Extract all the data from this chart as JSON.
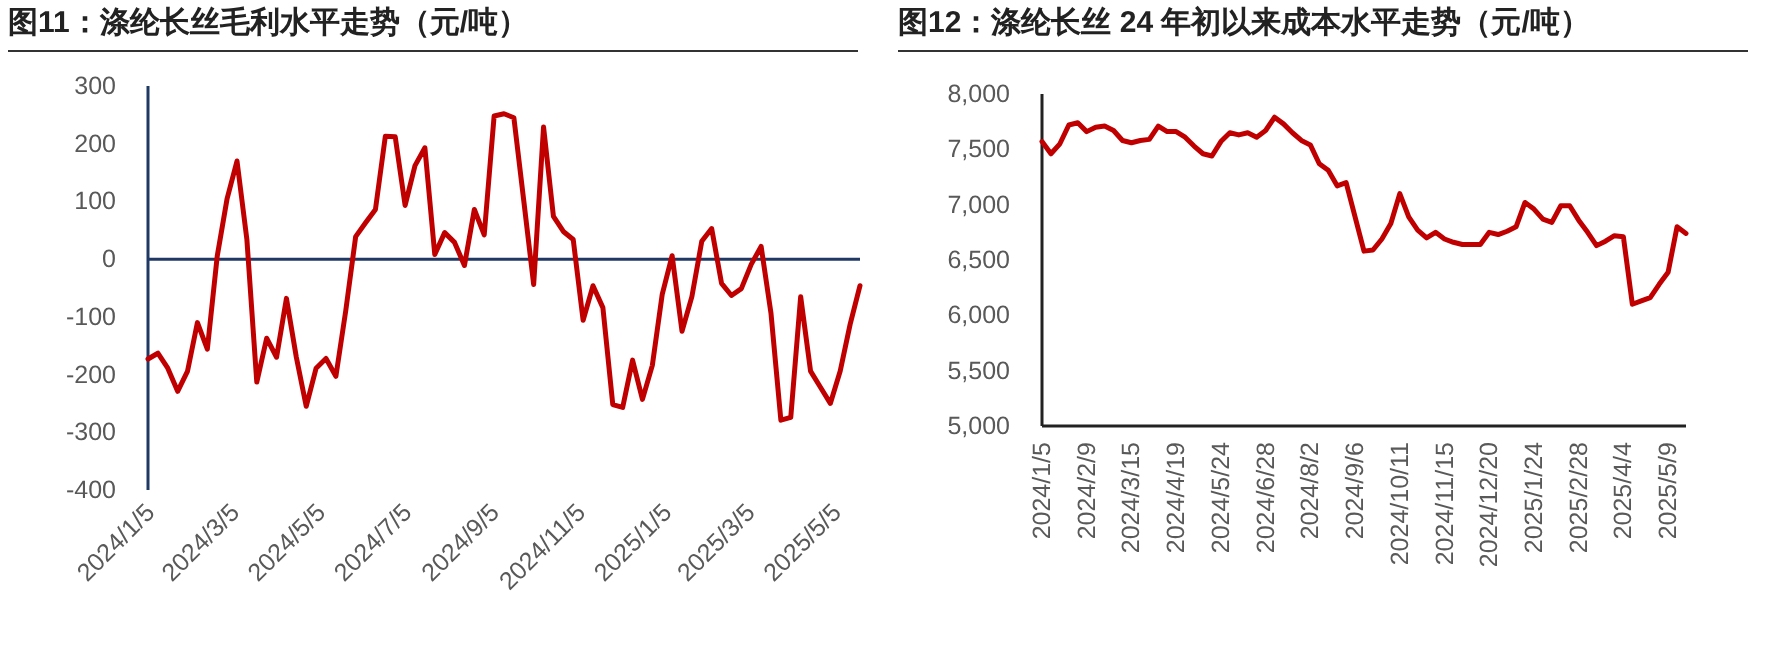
{
  "chart_data": [
    {
      "type": "line",
      "title": "图11：涤纶长丝毛利水平走势（元/吨）",
      "color": "#c00000",
      "x": [
        "2024-01-05",
        "2024-01-12",
        "2024-01-19",
        "2024-01-26",
        "2024-02-02",
        "2024-02-09",
        "2024-02-16",
        "2024-02-23",
        "2024-03-01",
        "2024-03-08",
        "2024-03-15",
        "2024-03-22",
        "2024-03-29",
        "2024-04-05",
        "2024-04-12",
        "2024-04-19",
        "2024-04-26",
        "2024-05-03",
        "2024-05-10",
        "2024-05-17",
        "2024-05-24",
        "2024-05-31",
        "2024-06-07",
        "2024-06-14",
        "2024-06-21",
        "2024-06-28",
        "2024-07-05",
        "2024-07-12",
        "2024-07-19",
        "2024-07-26",
        "2024-08-02",
        "2024-08-09",
        "2024-08-16",
        "2024-08-23",
        "2024-08-30",
        "2024-09-06",
        "2024-09-13",
        "2024-09-20",
        "2024-09-27",
        "2024-10-04",
        "2024-10-11",
        "2024-10-18",
        "2024-10-25",
        "2024-11-01",
        "2024-11-08",
        "2024-11-15",
        "2024-11-22",
        "2024-11-29",
        "2024-12-06",
        "2024-12-13",
        "2024-12-20",
        "2024-12-27",
        "2025-01-03",
        "2025-01-10",
        "2025-01-17",
        "2025-01-24",
        "2025-01-31",
        "2025-02-07",
        "2025-02-14",
        "2025-02-21",
        "2025-02-28",
        "2025-03-07",
        "2025-03-14",
        "2025-03-21",
        "2025-03-28",
        "2025-04-04",
        "2025-04-11",
        "2025-04-18",
        "2025-04-25",
        "2025-05-02",
        "2025-05-09",
        "2025-05-16",
        "2025-05-23"
      ],
      "values": [
        -173,
        -163,
        -189,
        -229,
        -194,
        -110,
        -156,
        5,
        105,
        170,
        34,
        -213,
        -137,
        -170,
        -68,
        -170,
        -255,
        -189,
        -172,
        -203,
        -89,
        39,
        63,
        86,
        213,
        212,
        93,
        162,
        193,
        8,
        46,
        29,
        -11,
        86,
        42,
        248,
        252,
        245,
        101,
        -44,
        229,
        74,
        48,
        34,
        -106,
        -46,
        -84,
        -252,
        -257,
        -175,
        -243,
        -184,
        -61,
        6,
        -125,
        -65,
        31,
        53,
        -42,
        -63,
        -51,
        -9,
        22,
        -94,
        -279,
        -274,
        -65,
        -194,
        -222,
        -250,
        -194,
        -113,
        -46
      ],
      "xlim": [
        "2024-01-05",
        "2025-05-23"
      ],
      "xticks": [
        {
          "value": "2024-01-05",
          "label": "2024/1/5"
        },
        {
          "value": "2024-03-05",
          "label": "2024/3/5"
        },
        {
          "value": "2024-05-05",
          "label": "2024/5/5"
        },
        {
          "value": "2024-07-05",
          "label": "2024/7/5"
        },
        {
          "value": "2024-09-05",
          "label": "2024/9/5"
        },
        {
          "value": "2024-11-05",
          "label": "2024/11/5"
        },
        {
          "value": "2025-01-05",
          "label": "2025/1/5"
        },
        {
          "value": "2025-03-05",
          "label": "2025/3/5"
        },
        {
          "value": "2025-05-05",
          "label": "2025/5/5"
        }
      ],
      "ref_lines": [
        {
          "axis": "y",
          "value": 0,
          "color": "#1f3864"
        }
      ],
      "ylim": [
        -400,
        300
      ],
      "yticks": [
        -400,
        -300,
        -200,
        -100,
        0,
        100,
        200,
        300
      ]
    },
    {
      "type": "line",
      "title": "图12：涤纶长丝 24 年初以来成本水平走势（元/吨）",
      "color": "#c00000",
      "x": [
        "2024-01-05",
        "2024-01-12",
        "2024-01-19",
        "2024-01-26",
        "2024-02-02",
        "2024-02-09",
        "2024-02-16",
        "2024-02-23",
        "2024-03-01",
        "2024-03-08",
        "2024-03-15",
        "2024-03-22",
        "2024-03-29",
        "2024-04-05",
        "2024-04-12",
        "2024-04-19",
        "2024-04-26",
        "2024-05-03",
        "2024-05-10",
        "2024-05-17",
        "2024-05-24",
        "2024-05-31",
        "2024-06-07",
        "2024-06-14",
        "2024-06-21",
        "2024-06-28",
        "2024-07-05",
        "2024-07-12",
        "2024-07-19",
        "2024-07-26",
        "2024-08-02",
        "2024-08-09",
        "2024-08-16",
        "2024-08-23",
        "2024-08-30",
        "2024-09-06",
        "2024-09-13",
        "2024-09-20",
        "2024-09-27",
        "2024-10-04",
        "2024-10-11",
        "2024-10-18",
        "2024-10-25",
        "2024-11-01",
        "2024-11-08",
        "2024-11-15",
        "2024-11-22",
        "2024-11-29",
        "2024-12-06",
        "2024-12-13",
        "2024-12-20",
        "2024-12-27",
        "2025-01-03",
        "2025-01-10",
        "2025-01-17",
        "2025-01-24",
        "2025-01-31",
        "2025-02-07",
        "2025-02-14",
        "2025-02-21",
        "2025-02-28",
        "2025-03-07",
        "2025-03-14",
        "2025-03-21",
        "2025-03-28",
        "2025-04-04",
        "2025-04-11",
        "2025-04-18",
        "2025-04-25",
        "2025-05-02",
        "2025-05-09",
        "2025-05-16",
        "2025-05-23"
      ],
      "values": [
        7570,
        7460,
        7550,
        7720,
        7740,
        7660,
        7700,
        7710,
        7670,
        7580,
        7560,
        7580,
        7590,
        7710,
        7660,
        7660,
        7610,
        7530,
        7460,
        7440,
        7570,
        7650,
        7630,
        7650,
        7610,
        7670,
        7790,
        7730,
        7650,
        7580,
        7540,
        7370,
        7310,
        7170,
        7200,
        6890,
        6580,
        6590,
        6690,
        6830,
        7100,
        6890,
        6770,
        6700,
        6750,
        6690,
        6660,
        6640,
        6640,
        6640,
        6750,
        6730,
        6760,
        6800,
        7020,
        6960,
        6870,
        6840,
        6990,
        6990,
        6860,
        6750,
        6630,
        6670,
        6720,
        6710,
        6100,
        6130,
        6160,
        6280,
        6390,
        6800,
        6740
      ],
      "xlim": [
        "2024-01-05",
        "2025-05-23"
      ],
      "xticks": [
        {
          "value": "2024-01-05",
          "label": "2024/1/5"
        },
        {
          "value": "2024-02-09",
          "label": "2024/2/9"
        },
        {
          "value": "2024-03-15",
          "label": "2024/3/15"
        },
        {
          "value": "2024-04-19",
          "label": "2024/4/19"
        },
        {
          "value": "2024-05-24",
          "label": "2024/5/24"
        },
        {
          "value": "2024-06-28",
          "label": "2024/6/28"
        },
        {
          "value": "2024-08-02",
          "label": "2024/8/2"
        },
        {
          "value": "2024-09-06",
          "label": "2024/9/6"
        },
        {
          "value": "2024-10-11",
          "label": "2024/10/11"
        },
        {
          "value": "2024-11-15",
          "label": "2024/11/15"
        },
        {
          "value": "2024-12-20",
          "label": "2024/12/20"
        },
        {
          "value": "2025-01-24",
          "label": "2025/1/24"
        },
        {
          "value": "2025-02-28",
          "label": "2025/2/28"
        },
        {
          "value": "2025-04-04",
          "label": "2025/4/4"
        },
        {
          "value": "2025-05-09",
          "label": "2025/5/9"
        }
      ],
      "ylim": [
        5000,
        8000
      ],
      "yticks": [
        {
          "value": 5000,
          "label": "5,000"
        },
        {
          "value": 5500,
          "label": "5,500"
        },
        {
          "value": 6000,
          "label": "6,000"
        },
        {
          "value": 6500,
          "label": "6,500"
        },
        {
          "value": 7000,
          "label": "7,000"
        },
        {
          "value": 7500,
          "label": "7,500"
        },
        {
          "value": 8000,
          "label": "8,000"
        }
      ]
    }
  ]
}
